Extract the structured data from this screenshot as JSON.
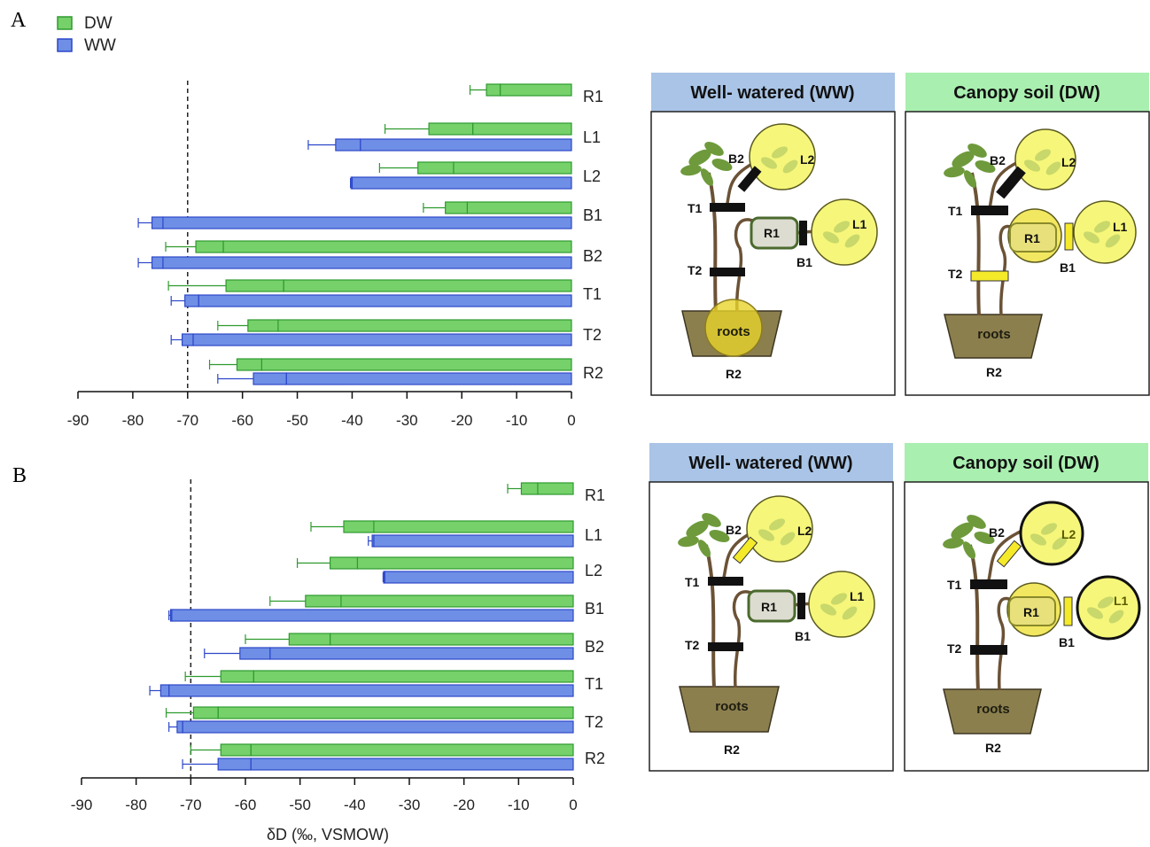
{
  "labels": {
    "panel_a": "A",
    "panel_b": "B"
  },
  "legend": [
    {
      "name": "DW",
      "color": "#76d16a",
      "stroke": "#2e9a2e"
    },
    {
      "name": "WW",
      "color": "#6f8fe6",
      "stroke": "#2d47c9"
    }
  ],
  "chart_data": [
    {
      "panel": "A",
      "type": "bar",
      "orientation": "horizontal",
      "categories": [
        "R1",
        "L1",
        "L2",
        "B1",
        "B2",
        "T1",
        "T2",
        "R2"
      ],
      "series": [
        {
          "name": "DW",
          "values": [
            -13,
            -18,
            -21.5,
            -19,
            -63.5,
            -52.5,
            -53.5,
            -56.5
          ],
          "err_low": [
            -15.5,
            -26,
            -28,
            -23,
            -68.5,
            -63,
            -59,
            -61
          ],
          "err_whisker": [
            -18.5,
            -34,
            -35,
            -27,
            -74,
            -73.5,
            -64.5,
            -66
          ]
        },
        {
          "name": "WW",
          "values": [
            null,
            -38.5,
            -40,
            -74.5,
            -74.5,
            -68,
            -69,
            -52
          ],
          "err_low": [
            null,
            -43,
            -40.2,
            -76.5,
            -76.5,
            -70.5,
            -71,
            -58
          ],
          "err_whisker": [
            null,
            -48,
            -40.3,
            -79,
            -79,
            -73,
            -73,
            -64.5
          ]
        }
      ],
      "xlim": [
        -90,
        0
      ],
      "xticks": [
        "-90",
        "-80",
        "-70",
        "-60",
        "-50",
        "-40",
        "-30",
        "-20",
        "-10",
        "0"
      ],
      "reference_line": -70,
      "xlabel": ""
    },
    {
      "panel": "B",
      "type": "bar",
      "orientation": "horizontal",
      "categories": [
        "R1",
        "L1",
        "L2",
        "B1",
        "B2",
        "T1",
        "T2",
        "R2"
      ],
      "series": [
        {
          "name": "DW",
          "values": [
            -6.5,
            -36.5,
            -39.5,
            -42.5,
            -44.5,
            -58.5,
            -65,
            -59
          ],
          "err_low": [
            -9.5,
            -42,
            -44.5,
            -49,
            -52,
            -64.5,
            -69.5,
            -64.5
          ],
          "err_whisker": [
            -12,
            -48,
            -50.5,
            -55.5,
            -60,
            -71,
            -74.5,
            -70
          ]
        },
        {
          "name": "WW",
          "values": [
            null,
            -36.5,
            -34.5,
            -73.5,
            -55.5,
            -74,
            -71.5,
            -59
          ],
          "err_low": [
            null,
            -36.8,
            -34.7,
            -73.7,
            -61,
            -75.5,
            -72.5,
            -65
          ],
          "err_whisker": [
            null,
            -37.5,
            -34.8,
            -74,
            -67.5,
            -77.5,
            -74,
            -71.5
          ]
        }
      ],
      "xlim": [
        -90,
        0
      ],
      "xticks": [
        "-90",
        "-80",
        "-70",
        "-60",
        "-50",
        "-40",
        "-30",
        "-20",
        "-10",
        "0"
      ],
      "reference_line": -70,
      "xlabel": "δD (‰, VSMOW)"
    }
  ],
  "diagrams": {
    "ww_title": "Well- watered (WW)",
    "dw_title": "Canopy soil (DW)",
    "ww_color": "#a9c4e6",
    "dw_color": "#a9efb0",
    "nodes": {
      "b2": "B2",
      "l2": "L2",
      "t1": "T1",
      "r1": "R1",
      "l1": "L1",
      "b1": "B1",
      "t2": "T2",
      "roots": "roots",
      "r2": "R2"
    }
  }
}
